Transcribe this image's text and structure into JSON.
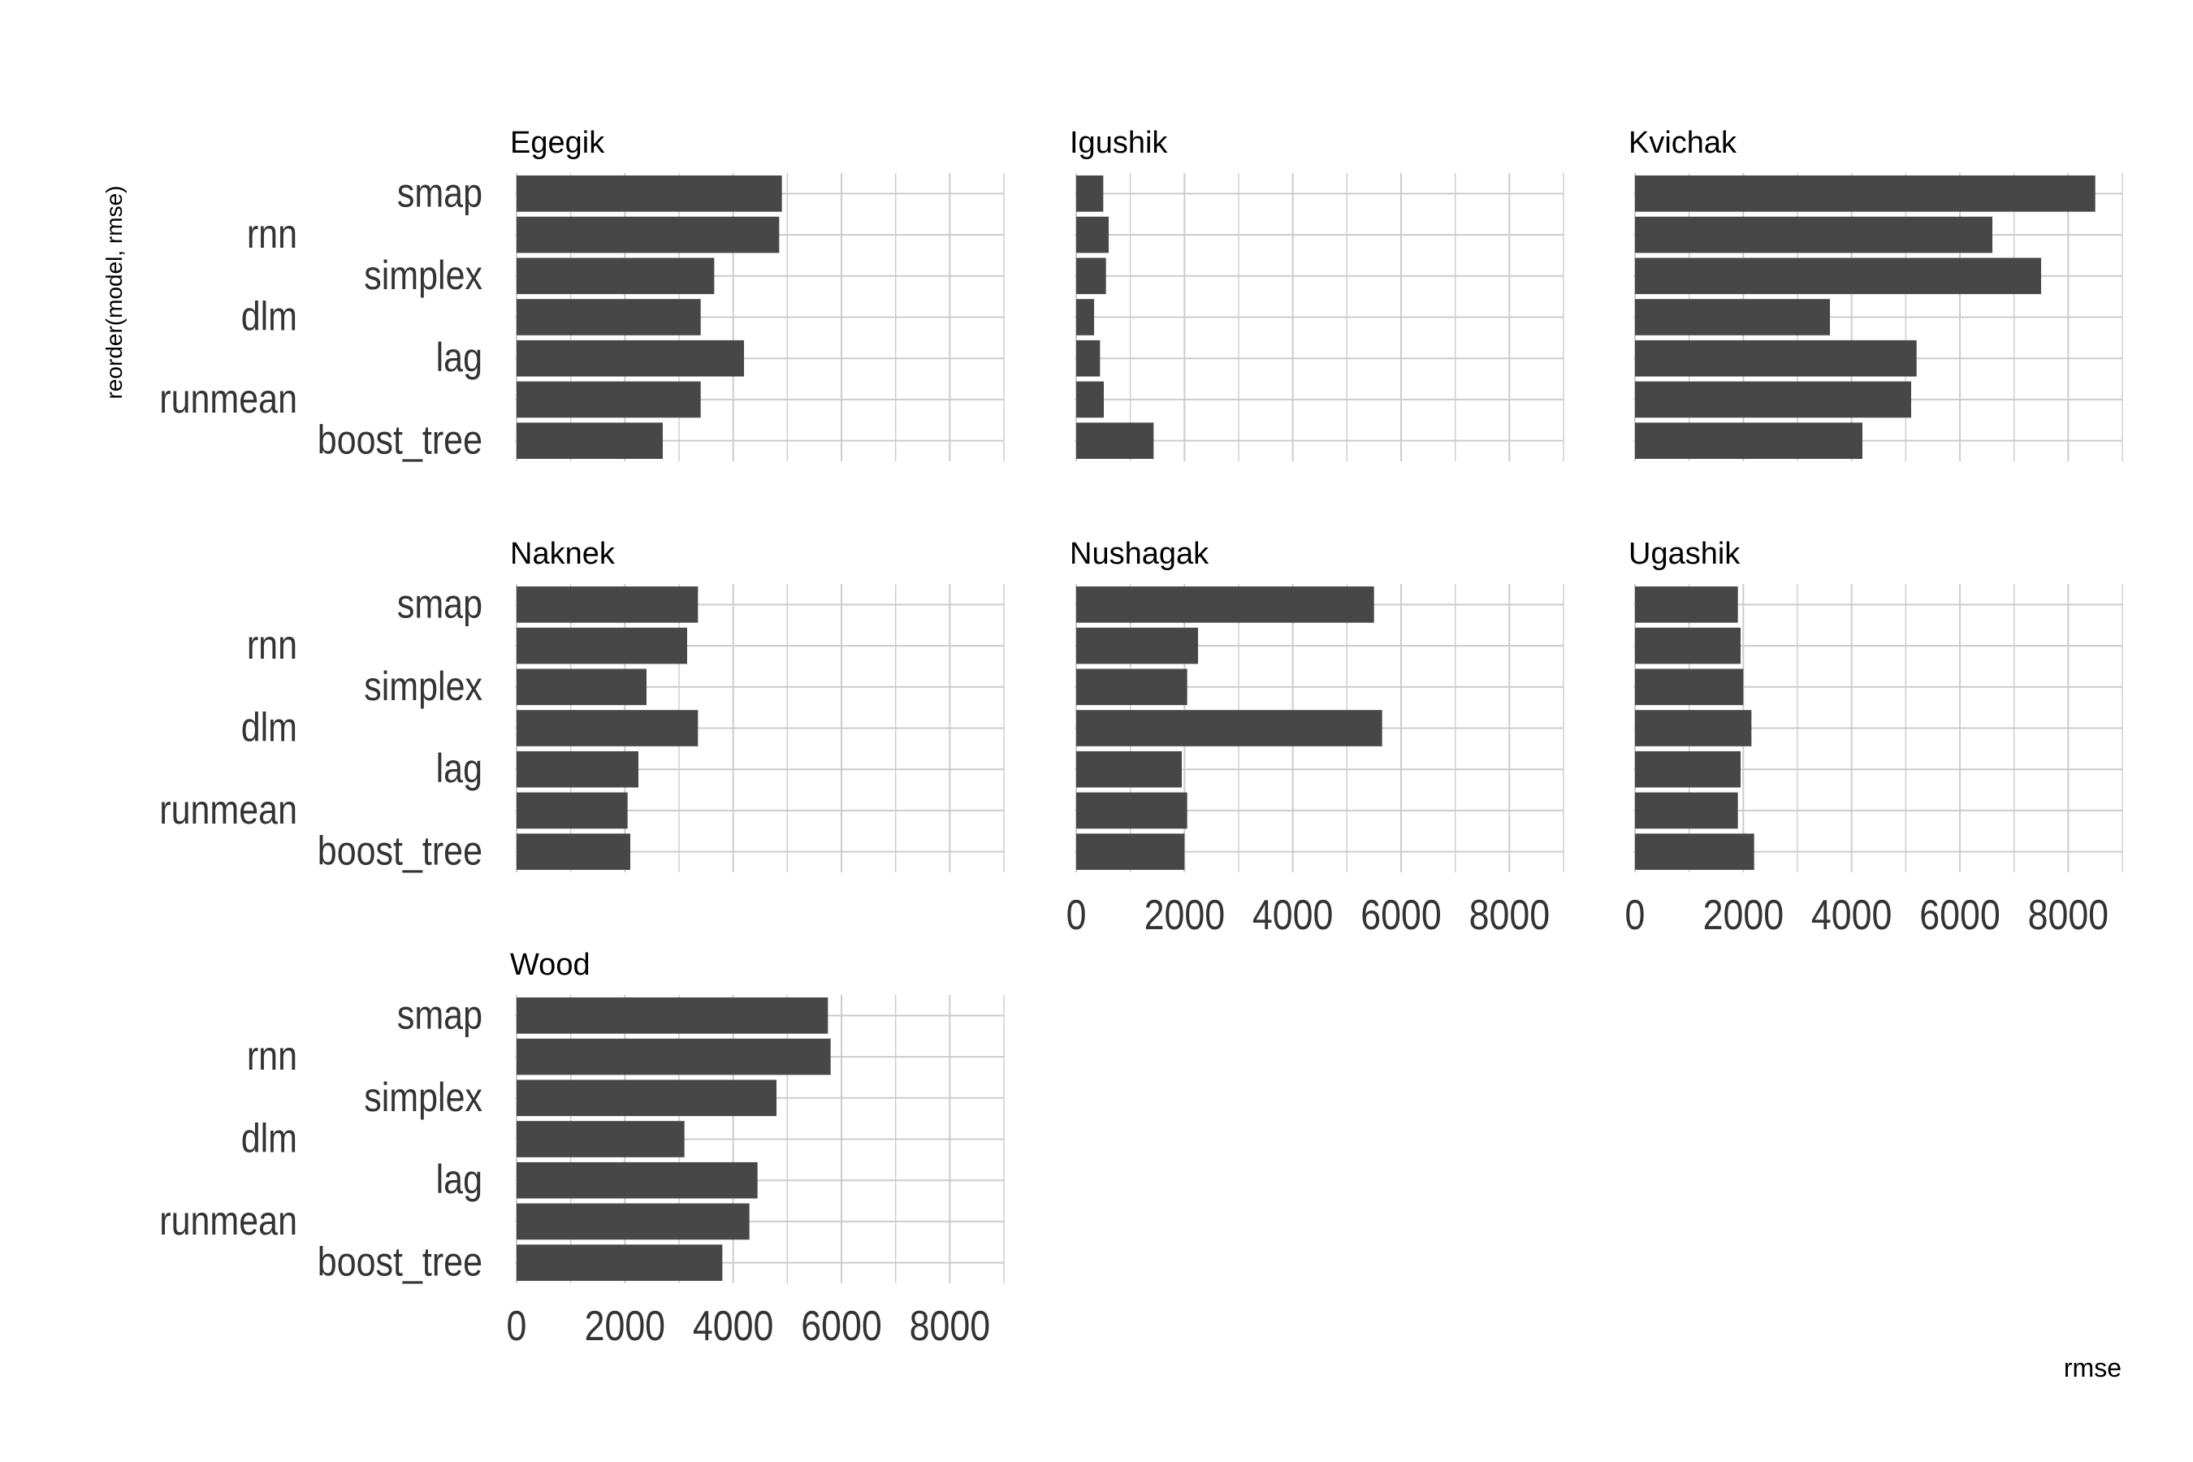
{
  "chart_data": {
    "type": "bar",
    "orientation": "horizontal",
    "facet_by": "river",
    "xlabel": "rmse",
    "ylabel": "reorder(model, rmse)",
    "xlim": [
      0,
      9000
    ],
    "xticks": [
      0,
      2000,
      4000,
      6000,
      8000
    ],
    "grid": true,
    "categories": [
      "smap",
      "rnn",
      "simplex",
      "dlm",
      "lag",
      "runmean",
      "boost_tree"
    ],
    "row_labels_shown": [
      "smap",
      "simplex",
      "lag",
      "boost_tree"
    ],
    "row_labels_shown_left": [
      "rnn",
      "dlm",
      "runmean"
    ],
    "bar_color": "#474747",
    "grid_color": "#cccccc",
    "panels": [
      {
        "name": "Egegik",
        "values": [
          4900,
          4850,
          3650,
          3400,
          4200,
          3400,
          2700
        ]
      },
      {
        "name": "Igushik",
        "values": [
          500,
          600,
          550,
          330,
          440,
          510,
          1430
        ]
      },
      {
        "name": "Kvichak",
        "values": [
          8500,
          6600,
          7500,
          3600,
          5200,
          5100,
          4200
        ]
      },
      {
        "name": "Naknek",
        "values": [
          3350,
          3150,
          2400,
          3350,
          2250,
          2050,
          2100
        ]
      },
      {
        "name": "Nushagak",
        "values": [
          5500,
          2250,
          2050,
          5650,
          1950,
          2050,
          2000
        ]
      },
      {
        "name": "Ugashik",
        "values": [
          1900,
          1950,
          2000,
          2150,
          1950,
          1900,
          2200
        ]
      },
      {
        "name": "Wood",
        "values": [
          5750,
          5800,
          4800,
          3100,
          4450,
          4300,
          3800
        ]
      }
    ]
  }
}
